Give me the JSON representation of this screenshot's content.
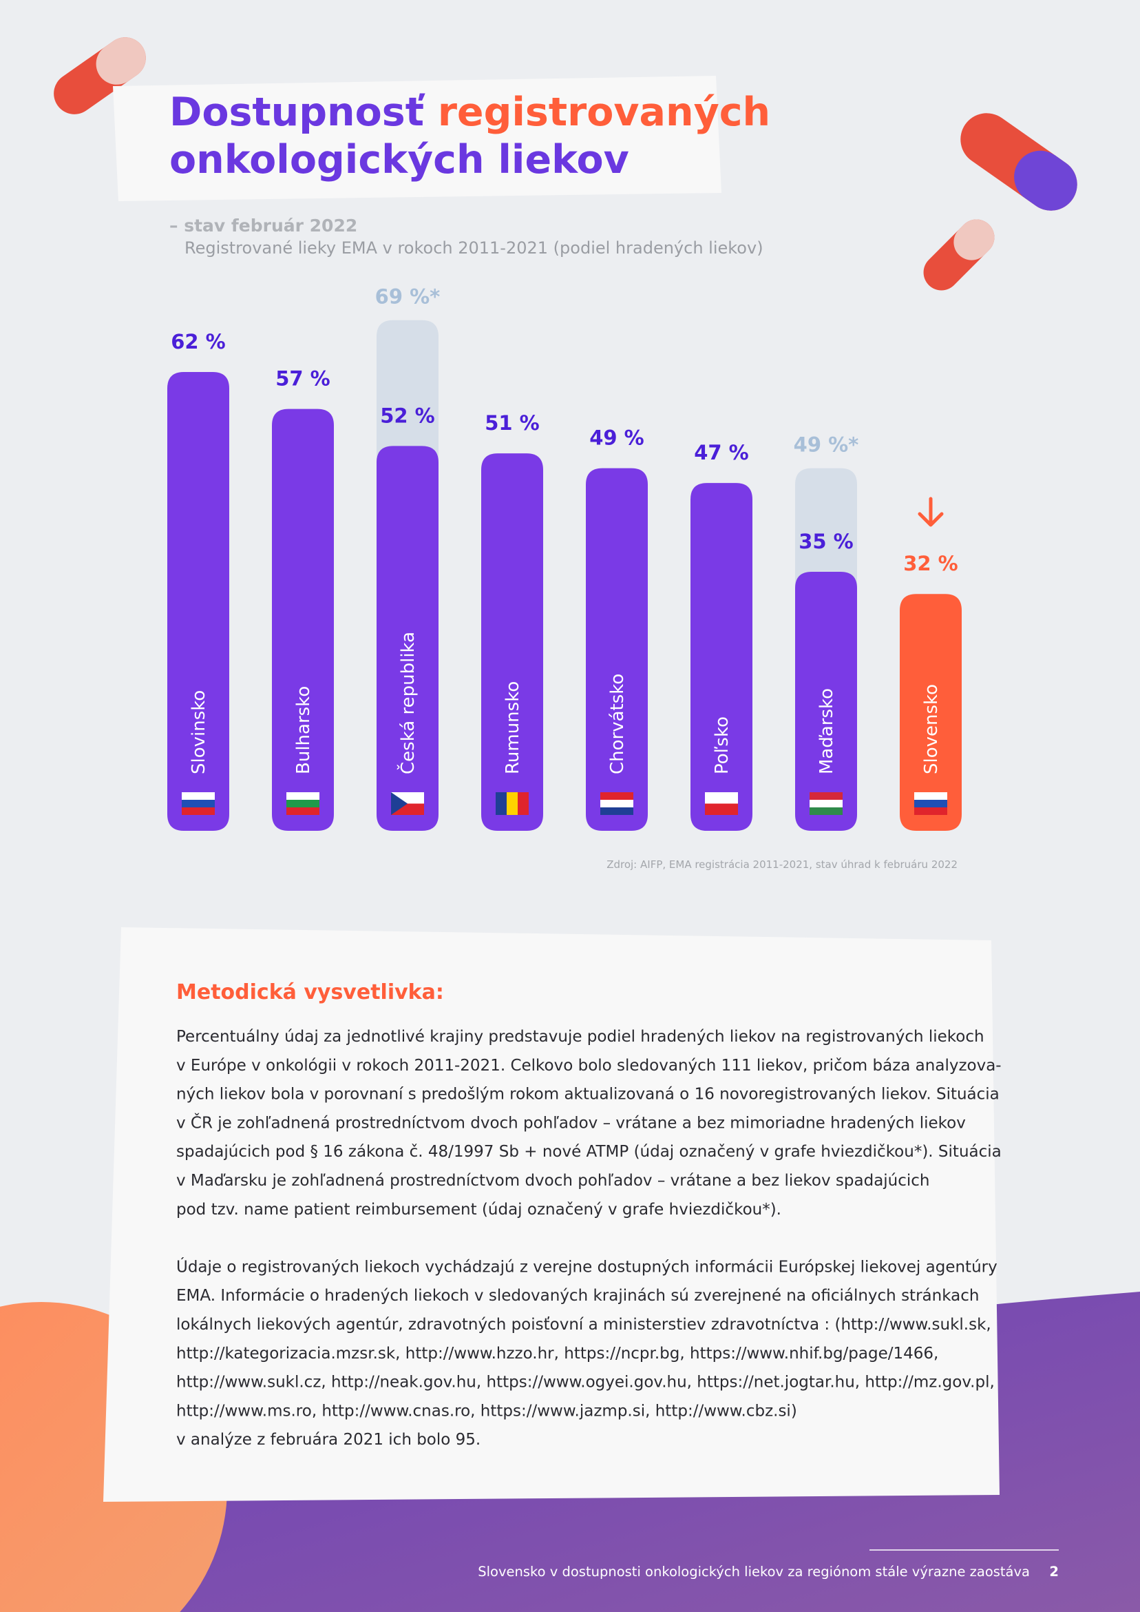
{
  "chart_data": {
    "type": "bar",
    "title": [
      "Dostupnosť",
      "registrovaných",
      "onkologických liekov"
    ],
    "subtitle": "– stav február 2022",
    "description": "Registrované lieky EMA v rokoch 2011-2021 (podiel hradených liekov)",
    "categories": [
      "Slovinsko",
      "Bulharsko",
      "Česká republika",
      "Rumunsko",
      "Chorvátsko",
      "Poľsko",
      "Maďarsko",
      "Slovensko"
    ],
    "series": [
      {
        "colors": [
          "#7a3ae6",
          "#7a3ae6",
          "#7a3ae6",
          "#7a3ae6",
          "#7a3ae6",
          "#7a3ae6",
          "#7a3ae6",
          "#ff5e3a"
        ],
        "label_colors": [
          "#4a1fd8",
          "#4a1fd8",
          "#4a1fd8",
          "#4a1fd8",
          "#4a1fd8",
          "#4a1fd8",
          "#4a1fd8",
          "#ff5e3a"
        ],
        "values": [
          62,
          57,
          52,
          51,
          49,
          47,
          35,
          32
        ],
        "value_labels": [
          "62 %",
          "57 %",
          "52 %",
          "51 %",
          "49 %",
          "47 %",
          "35 %",
          "32 %"
        ]
      },
      {
        "color": "#d6dee8",
        "label_color": "#a8bfd8",
        "values": [
          null,
          null,
          69,
          null,
          null,
          null,
          49,
          null
        ],
        "value_labels": [
          null,
          null,
          "69 %*",
          null,
          null,
          null,
          "49 %*",
          null
        ]
      }
    ],
    "ylim": [
      0,
      70
    ],
    "source": "Zdroj: AIFP, EMA registrácia 2011-2021, stav úhrad k februáru 2022"
  },
  "note": {
    "heading": "Metodická vysvetlivka:",
    "paragraphs": [
      [
        "Percentuálny údaj za jednotlivé krajiny predstavuje podiel hradených liekov na registrovaných liekoch",
        "v Európe v onkológii v rokoch 2011-2021. Celkovo bolo sledovaných 111 liekov, pričom báza analyzova-",
        "ných liekov bola v porovnaní s predošlým rokom aktualizovaná o 16 novoregistrovaných liekov. Situácia",
        "v ČR je zohľadnená prostredníctvom dvoch pohľadov – vrátane a bez mimoriadne hradených liekov",
        "spadajúcich pod § 16 zákona č. 48/1997 Sb + nové ATMP (údaj označený v grafe hviezdičkou*). Situácia",
        "v Maďarsku je zohľadnená prostredníctvom dvoch pohľadov – vrátane a bez liekov spadajúcich",
        "pod tzv. name patient reimbursement (údaj označený v grafe hviezdičkou*)."
      ],
      [
        "Údaje o registrovaných liekoch vychádzajú z verejne dostupných informácii Európskej liekovej agentúry",
        "EMA. Informácie o hradených liekoch v sledovaných krajinách sú zverejnené na oficiálnych stránkach",
        "lokálnych liekových agentúr, zdravotných poisťovní a ministerstiev zdravotníctva : (http://www.sukl.sk,",
        "http://kategorizacia.mzsr.sk, http://www.hzzo.hr, https://ncpr.bg, https://www.nhif.bg/page/1466,",
        "http://www.sukl.cz, http://neak.gov.hu, https://www.ogyei.gov.hu, https://net.jogtar.hu, http://mz.gov.pl,",
        "http://www.ms.ro, http://www.cnas.ro, https://www.jazmp.si, http://www.cbz.si)",
        "v analýze z februára 2021 ich bolo 95."
      ]
    ]
  },
  "footer": {
    "text": "Slovensko v dostupnosti onkologických liekov za regiónom stále výrazne zaostáva",
    "page": "2"
  }
}
